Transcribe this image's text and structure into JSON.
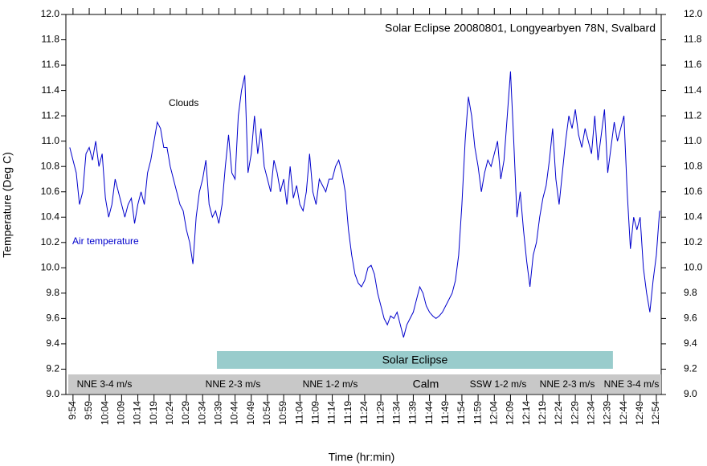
{
  "chart_data": {
    "type": "line",
    "title": "Solar Eclipse 20080801, Longyearbyen 78N, Svalbard",
    "xlabel": "Time (hr:min)",
    "ylabel": "Temperature (Deg C)",
    "annotations": {
      "clouds": "Clouds",
      "air": "Air temperature"
    },
    "eclipse_band": {
      "label": "Solar Eclipse",
      "start": 638.4,
      "end": 760.6,
      "color": "#99cccc"
    },
    "wind_labels": [
      "NNE 3-4 m/s",
      "NNE 2-3 m/s",
      "NNE 1-2 m/s",
      "Calm",
      "SSW 1-2 m/s",
      "NNE 2-3 m/s",
      "NNE 3-4 m/s"
    ],
    "wind_color": "#c8c8c8",
    "series": [
      {
        "name": "Air temperature",
        "color": "#0000cc",
        "x": [
          593,
          594,
          595,
          596,
          597,
          598,
          599,
          600,
          601,
          602,
          603,
          604,
          605,
          606,
          607,
          608,
          609,
          610,
          611,
          612,
          613,
          614,
          615,
          616,
          617,
          618,
          619,
          620,
          621,
          622,
          623,
          624,
          625,
          626,
          627,
          628,
          629,
          630,
          631,
          632,
          633,
          634,
          635,
          636,
          637,
          638,
          639,
          640,
          641,
          642,
          643,
          644,
          645,
          646,
          647,
          648,
          649,
          650,
          651,
          652,
          653,
          654,
          655,
          656,
          657,
          658,
          659,
          660,
          661,
          662,
          663,
          664,
          665,
          666,
          667,
          668,
          669,
          670,
          671,
          672,
          673,
          674,
          675,
          676,
          677,
          678,
          679,
          680,
          681,
          682,
          683,
          684,
          685,
          686,
          687,
          688,
          689,
          690,
          691,
          692,
          693,
          694,
          695,
          696,
          697,
          698,
          699,
          700,
          701,
          702,
          703,
          704,
          705,
          706,
          707,
          708,
          709,
          710,
          711,
          712,
          713,
          714,
          715,
          716,
          717,
          718,
          719,
          720,
          721,
          722,
          723,
          724,
          725,
          726,
          727,
          728,
          729,
          730,
          731,
          732,
          733,
          734,
          735,
          736,
          737,
          738,
          739,
          740,
          741,
          742,
          743,
          744,
          745,
          746,
          747,
          748,
          749,
          750,
          751,
          752,
          753,
          754,
          755,
          756,
          757,
          758,
          759,
          760,
          761,
          762,
          763,
          764,
          765,
          766,
          767,
          768,
          769,
          770,
          771,
          772,
          773,
          774,
          775
        ],
        "values": [
          10.95,
          10.85,
          10.75,
          10.5,
          10.6,
          10.9,
          10.95,
          10.85,
          11.0,
          10.8,
          10.9,
          10.55,
          10.4,
          10.5,
          10.7,
          10.6,
          10.5,
          10.4,
          10.5,
          10.55,
          10.35,
          10.5,
          10.6,
          10.5,
          10.75,
          10.85,
          11.0,
          11.15,
          11.1,
          10.95,
          10.95,
          10.8,
          10.7,
          10.6,
          10.5,
          10.45,
          10.3,
          10.2,
          10.03,
          10.4,
          10.6,
          10.7,
          10.85,
          10.5,
          10.4,
          10.45,
          10.35,
          10.5,
          10.8,
          11.05,
          10.75,
          10.7,
          11.2,
          11.4,
          11.52,
          10.75,
          10.9,
          11.2,
          10.9,
          11.1,
          10.8,
          10.7,
          10.6,
          10.85,
          10.75,
          10.6,
          10.7,
          10.5,
          10.8,
          10.55,
          10.65,
          10.5,
          10.45,
          10.6,
          10.9,
          10.6,
          10.5,
          10.7,
          10.65,
          10.6,
          10.7,
          10.7,
          10.8,
          10.85,
          10.75,
          10.6,
          10.3,
          10.1,
          9.95,
          9.88,
          9.85,
          9.9,
          10.0,
          10.02,
          9.95,
          9.8,
          9.7,
          9.6,
          9.55,
          9.62,
          9.6,
          9.65,
          9.55,
          9.45,
          9.55,
          9.6,
          9.65,
          9.75,
          9.85,
          9.8,
          9.7,
          9.65,
          9.62,
          9.6,
          9.62,
          9.65,
          9.7,
          9.75,
          9.8,
          9.9,
          10.1,
          10.5,
          11.0,
          11.35,
          11.2,
          10.95,
          10.8,
          10.6,
          10.75,
          10.85,
          10.8,
          10.9,
          11.0,
          10.7,
          10.85,
          11.2,
          11.55,
          11.0,
          10.4,
          10.6,
          10.3,
          10.05,
          9.85,
          10.1,
          10.2,
          10.4,
          10.55,
          10.65,
          10.85,
          11.1,
          10.7,
          10.5,
          10.75,
          11.0,
          11.2,
          11.1,
          11.25,
          11.05,
          10.95,
          11.1,
          11.0,
          10.9,
          11.2,
          10.85,
          11.05,
          11.25,
          10.75,
          10.95,
          11.15,
          11.0,
          11.1,
          11.2,
          10.6,
          10.15,
          10.4,
          10.3,
          10.4,
          10.0,
          9.8,
          9.65,
          9.9,
          10.1,
          10.45
        ]
      }
    ],
    "xlim": [
      591.8,
      775.5
    ],
    "xticks": [
      {
        "value": 594,
        "label": "9:54"
      },
      {
        "value": 599,
        "label": "9:59"
      },
      {
        "value": 604,
        "label": "10:04"
      },
      {
        "value": 609,
        "label": "10:09"
      },
      {
        "value": 614,
        "label": "10:14"
      },
      {
        "value": 619,
        "label": "10:19"
      },
      {
        "value": 624,
        "label": "10:24"
      },
      {
        "value": 629,
        "label": "10:29"
      },
      {
        "value": 634,
        "label": "10:34"
      },
      {
        "value": 639,
        "label": "10:39"
      },
      {
        "value": 644,
        "label": "10:44"
      },
      {
        "value": 649,
        "label": "10:49"
      },
      {
        "value": 654,
        "label": "10:54"
      },
      {
        "value": 659,
        "label": "10:59"
      },
      {
        "value": 664,
        "label": "11:04"
      },
      {
        "value": 669,
        "label": "11:09"
      },
      {
        "value": 674,
        "label": "11:14"
      },
      {
        "value": 679,
        "label": "11:19"
      },
      {
        "value": 684,
        "label": "11:24"
      },
      {
        "value": 689,
        "label": "11:29"
      },
      {
        "value": 694,
        "label": "11:34"
      },
      {
        "value": 699,
        "label": "11:39"
      },
      {
        "value": 704,
        "label": "11:44"
      },
      {
        "value": 709,
        "label": "11:49"
      },
      {
        "value": 714,
        "label": "11:54"
      },
      {
        "value": 719,
        "label": "11:59"
      },
      {
        "value": 724,
        "label": "12:04"
      },
      {
        "value": 729,
        "label": "12:09"
      },
      {
        "value": 734,
        "label": "12:14"
      },
      {
        "value": 739,
        "label": "12:19"
      },
      {
        "value": 744,
        "label": "12:24"
      },
      {
        "value": 749,
        "label": "12:29"
      },
      {
        "value": 754,
        "label": "12:34"
      },
      {
        "value": 759,
        "label": "12:39"
      },
      {
        "value": 764,
        "label": "12:44"
      },
      {
        "value": 769,
        "label": "12:49"
      },
      {
        "value": 774,
        "label": "12:54"
      }
    ],
    "ylim": [
      9.0,
      12.0
    ],
    "yticks": [
      {
        "value": 9.0,
        "label": "9.0"
      },
      9.2,
      9.4,
      9.6,
      9.8,
      {
        "value": 10.0,
        "label": "10.0"
      },
      10.2,
      10.4,
      10.6,
      10.8,
      {
        "value": 11.0,
        "label": "11.0"
      },
      11.2,
      11.4,
      11.6,
      11.8,
      {
        "value": 12.0,
        "label": "12.0"
      }
    ]
  }
}
